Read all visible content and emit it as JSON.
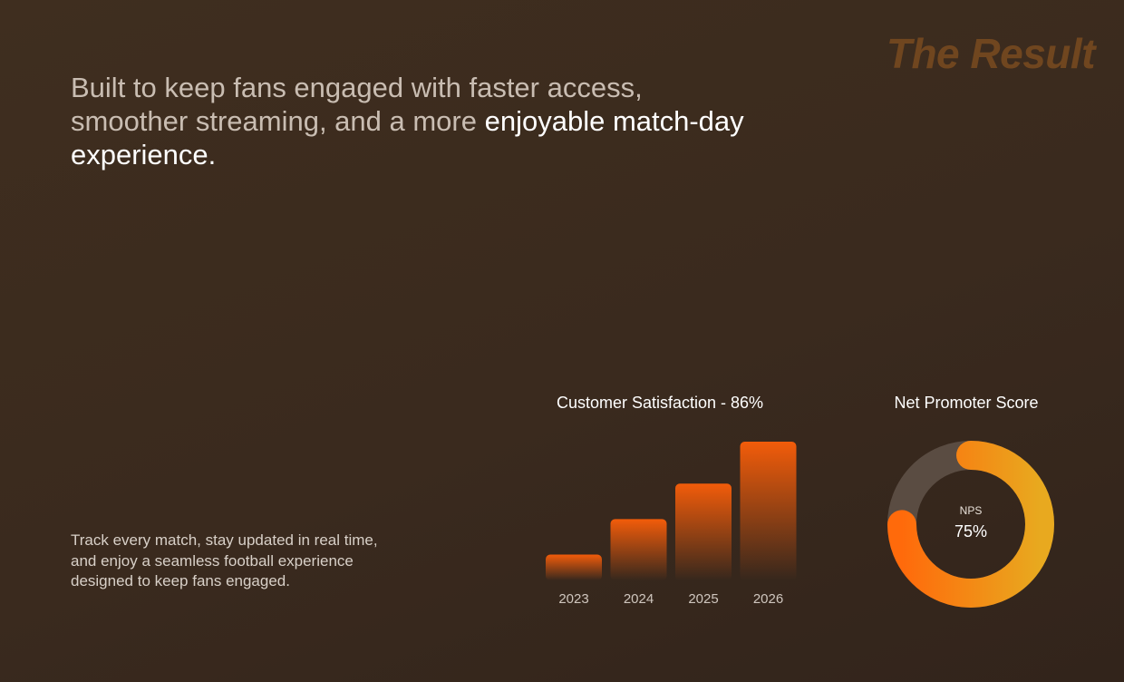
{
  "header": {
    "tag": "The Result",
    "headline_plain": "Built to keep fans engaged with faster access, smoother streaming, and a more ",
    "headline_bold": "enjoyable match-day experience."
  },
  "description": "Track every match, stay updated in real time, and enjoy a seamless football experience designed to keep fans engaged.",
  "chart_data": [
    {
      "type": "bar",
      "title": "Customer Satisfaction - 86%",
      "categories": [
        "2023",
        "2024",
        "2025",
        "2026"
      ],
      "values": [
        16,
        38,
        60,
        86
      ],
      "color": "#f25c0a"
    },
    {
      "type": "donut",
      "title": "Net Promoter Score",
      "center_label": "NPS",
      "value": 75,
      "value_label": "75%",
      "color": "#ff6a0b"
    }
  ]
}
